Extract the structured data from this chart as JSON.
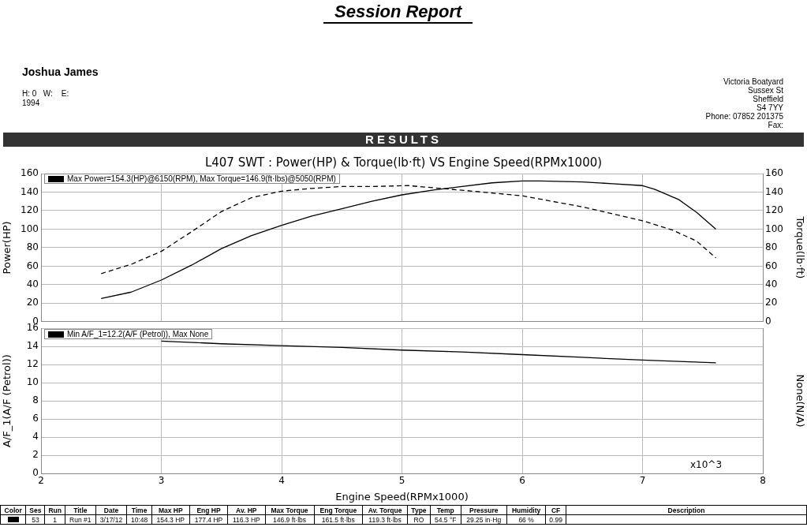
{
  "chart_data": [
    {
      "type": "line",
      "title": "L407 SWT : Power(HP) & Torque(lb·ft) VS Engine Speed(RPMx1000)",
      "ylabel": "Power(HP)",
      "y2label": "Torque(lb·ft)",
      "xlim": [
        2,
        8
      ],
      "xticks": [
        2,
        3,
        4,
        5,
        6,
        7,
        8
      ],
      "ylim": [
        0,
        160
      ],
      "yticks": [
        0,
        20,
        40,
        60,
        80,
        100,
        120,
        140,
        160
      ],
      "y2lim": [
        0,
        160
      ],
      "y2ticks": [
        0,
        20,
        40,
        60,
        80,
        100,
        120,
        140,
        160
      ],
      "tick_labels": "y",
      "grid": true,
      "legend": false,
      "marker": "none",
      "series": [
        {
          "color": "#000000",
          "line_style": "solid",
          "axis": "y",
          "x": [
            2.5,
            2.75,
            3.0,
            3.25,
            3.5,
            3.75,
            4.0,
            4.25,
            4.5,
            4.75,
            5.0,
            5.25,
            5.5,
            5.75,
            6.0,
            6.15,
            6.5,
            6.75,
            7.0,
            7.1,
            7.3,
            7.45,
            7.61
          ],
          "values": [
            25,
            32,
            45,
            61,
            79,
            93,
            104,
            114,
            122,
            130,
            137,
            142,
            146,
            150,
            152,
            152,
            151,
            149,
            147,
            143,
            132,
            118,
            100
          ]
        },
        {
          "color": "#000000",
          "line_style": "dashed",
          "axis": "y2",
          "x": [
            2.5,
            2.75,
            3.0,
            3.25,
            3.5,
            3.75,
            4.0,
            4.25,
            4.5,
            4.75,
            5.05,
            5.5,
            6.0,
            6.5,
            7.0,
            7.25,
            7.45,
            7.61
          ],
          "values": [
            52,
            62,
            76,
            97,
            119,
            134,
            141,
            144,
            146,
            146,
            147,
            142,
            136,
            124,
            109,
            99,
            87,
            69
          ]
        }
      ],
      "annotations": [
        "Session Report",
        "Joshua James",
        "H: 0   W:    E:",
        "1994",
        "Victoria Boatyard",
        "Sussex St",
        "Sheffield",
        "S4 7YY",
        "Phone: 07852 201375",
        "Fax:",
        "RESULTS",
        "Max Power=154.3(HP)@6150(RPM), Max Torque=146.9(ft·lbs)@5050(RPM)"
      ]
    },
    {
      "type": "line",
      "xlabel": "Engine Speed(RPMx1000)",
      "ylabel": "A/F_1(A/F (Petrol))",
      "y2label": "None(N/A)",
      "xlim": [
        2,
        8
      ],
      "xticks": [
        2,
        3,
        4,
        5,
        6,
        7,
        8
      ],
      "ylim": [
        0,
        16
      ],
      "yticks": [
        0,
        2,
        4,
        6,
        8,
        10,
        12,
        14,
        16
      ],
      "grid": true,
      "legend": false,
      "marker": "none",
      "series": [
        {
          "color": "#000000",
          "line_style": "solid",
          "axis": "y",
          "x": [
            3.0,
            3.5,
            4.0,
            4.5,
            5.0,
            5.5,
            6.0,
            6.5,
            7.0,
            7.61
          ],
          "values": [
            14.6,
            14.3,
            14.1,
            13.9,
            13.6,
            13.4,
            13.1,
            12.8,
            12.5,
            12.2
          ]
        }
      ],
      "annotations": [
        "Min A/F_1=12.2(A/F (Petrol)), Max None",
        "x10^3",
        "Color",
        "Ses",
        "Run",
        "Title",
        "Date",
        "Time",
        "Max HP",
        "Eng HP",
        "Av. HP",
        "Max Torque",
        "Eng Torque",
        "Av. Torque",
        "Type",
        "Temp",
        "Pressure",
        "Humidity",
        "CF",
        "Description",
        "53",
        "1",
        "Run #1",
        "3/17/12",
        "10:48",
        "154.3 HP",
        "177.4 HP",
        "116.3 HP",
        "146.9 ft·lbs",
        "161.5 ft·lbs",
        "119.3 ft·lbs",
        "RO",
        "54.5 °F",
        "29.25 in·Hg",
        "66 %",
        "0.99"
      ]
    }
  ]
}
